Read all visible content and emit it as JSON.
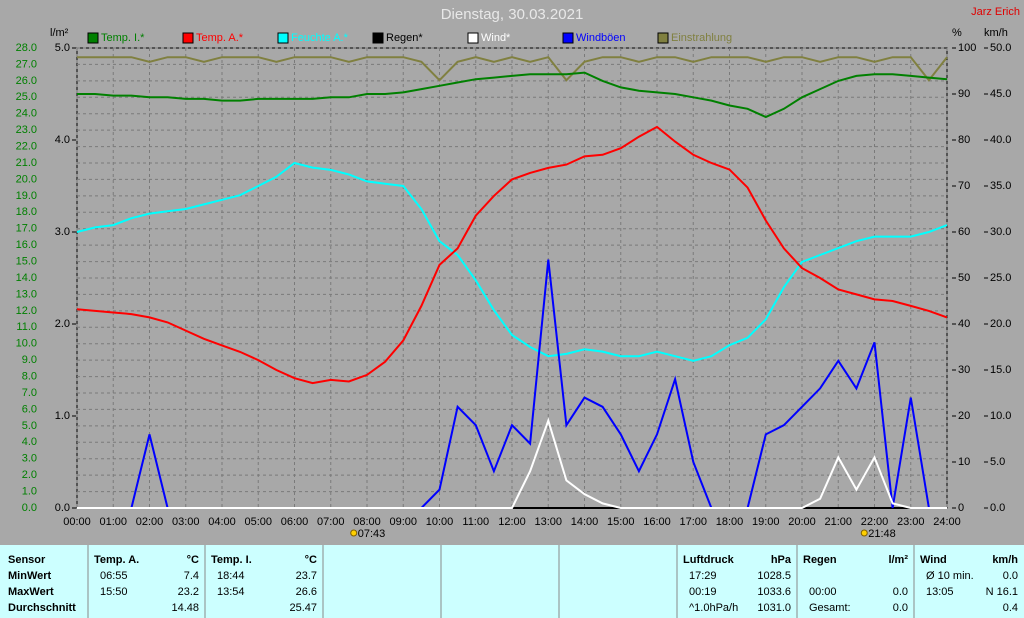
{
  "chart_data": {
    "type": "line",
    "title": "Dienstag, 30.03.2021",
    "author": "Jarz Erich",
    "axis_labels": {
      "y4": "l/m²",
      "y2": "%",
      "y3": "km/h"
    },
    "x": [
      0,
      0.5,
      1,
      1.5,
      2,
      2.5,
      3,
      3.5,
      4,
      4.5,
      5,
      5.5,
      6,
      6.5,
      7,
      7.5,
      8,
      8.5,
      9,
      9.5,
      10,
      10.5,
      11,
      11.5,
      12,
      12.5,
      13,
      13.5,
      14,
      14.5,
      15,
      15.5,
      16,
      16.5,
      17,
      17.5,
      18,
      18.5,
      19,
      19.5,
      20,
      20.5,
      21,
      21.5,
      22,
      22.5,
      23,
      23.5,
      24
    ],
    "xlim": [
      0,
      24
    ],
    "xticks": [
      {
        "value": 0,
        "label": "00:00"
      },
      {
        "value": 1,
        "label": "01:00"
      },
      {
        "value": 2,
        "label": "02:00"
      },
      {
        "value": 3,
        "label": "03:00"
      },
      {
        "value": 4,
        "label": "04:00"
      },
      {
        "value": 5,
        "label": "05:00"
      },
      {
        "value": 6,
        "label": "06:00"
      },
      {
        "value": 7,
        "label": "07:00"
      },
      {
        "value": 8,
        "label": "08:00"
      },
      {
        "value": 9,
        "label": "09:00"
      },
      {
        "value": 10,
        "label": "10:00"
      },
      {
        "value": 11,
        "label": "11:00"
      },
      {
        "value": 12,
        "label": "12:00"
      },
      {
        "value": 13,
        "label": "13:00"
      },
      {
        "value": 14,
        "label": "14:00"
      },
      {
        "value": 15,
        "label": "15:00"
      },
      {
        "value": 16,
        "label": "16:00"
      },
      {
        "value": 17,
        "label": "17:00"
      },
      {
        "value": 18,
        "label": "18:00"
      },
      {
        "value": 19,
        "label": "19:00"
      },
      {
        "value": 20,
        "label": "20:00"
      },
      {
        "value": 21,
        "label": "21:00"
      },
      {
        "value": 22,
        "label": "22:00"
      },
      {
        "value": 23,
        "label": "23:00"
      },
      {
        "value": 24,
        "label": "24:00"
      }
    ],
    "ylim": [
      0,
      28
    ],
    "yticks": [
      {
        "value": 0,
        "label": "0.0"
      },
      {
        "value": 1,
        "label": "1.0"
      },
      {
        "value": 2,
        "label": "2.0"
      },
      {
        "value": 3,
        "label": "3.0"
      },
      {
        "value": 4,
        "label": "4.0"
      },
      {
        "value": 5,
        "label": "5.0"
      },
      {
        "value": 6,
        "label": "6.0"
      },
      {
        "value": 7,
        "label": "7.0"
      },
      {
        "value": 8,
        "label": "8.0"
      },
      {
        "value": 9,
        "label": "9.0"
      },
      {
        "value": 10,
        "label": "10.0"
      },
      {
        "value": 11,
        "label": "11.0"
      },
      {
        "value": 12,
        "label": "12.0"
      },
      {
        "value": 13,
        "label": "13.0"
      },
      {
        "value": 14,
        "label": "14.0"
      },
      {
        "value": 15,
        "label": "15.0"
      },
      {
        "value": 16,
        "label": "16.0"
      },
      {
        "value": 17,
        "label": "17.0"
      },
      {
        "value": 18,
        "label": "18.0"
      },
      {
        "value": 19,
        "label": "19.0"
      },
      {
        "value": 20,
        "label": "20.0"
      },
      {
        "value": 21,
        "label": "21.0"
      },
      {
        "value": 22,
        "label": "22.0"
      },
      {
        "value": 23,
        "label": "23.0"
      },
      {
        "value": 24,
        "label": "24.0"
      },
      {
        "value": 25,
        "label": "25.0"
      },
      {
        "value": 26,
        "label": "26.0"
      },
      {
        "value": 27,
        "label": "27.0"
      },
      {
        "value": 28,
        "label": "28.0"
      }
    ],
    "y2lim": [
      0,
      100
    ],
    "y2ticks": [
      0,
      10,
      20,
      30,
      40,
      50,
      60,
      70,
      80,
      90,
      100
    ],
    "y3lim": [
      0,
      50
    ],
    "y3ticks": [
      {
        "value": 0,
        "label": "0.0"
      },
      {
        "value": 5,
        "label": "5.0"
      },
      {
        "value": 10,
        "label": "10.0"
      },
      {
        "value": 15,
        "label": "15.0"
      },
      {
        "value": 20,
        "label": "20.0"
      },
      {
        "value": 25,
        "label": "25.0"
      },
      {
        "value": 30,
        "label": "30.0"
      },
      {
        "value": 35,
        "label": "35.0"
      },
      {
        "value": 40,
        "label": "40.0"
      },
      {
        "value": 45,
        "label": "45.0"
      },
      {
        "value": 50,
        "label": "50.0"
      }
    ],
    "y4lim": [
      0,
      5
    ],
    "y4ticks": [
      {
        "value": 0,
        "label": "0.0"
      },
      {
        "value": 1,
        "label": "1.0"
      },
      {
        "value": 2,
        "label": "2.0"
      },
      {
        "value": 3,
        "label": "3.0"
      },
      {
        "value": 4,
        "label": "4.0"
      },
      {
        "value": 5,
        "label": "5.0"
      }
    ],
    "grid": true,
    "series": [
      {
        "name": "Temp. I.*",
        "color": "#008000",
        "axis": "y",
        "values": [
          25.2,
          25.2,
          25.1,
          25.1,
          25.0,
          25.0,
          24.9,
          24.9,
          24.8,
          24.8,
          24.9,
          24.9,
          24.9,
          24.9,
          25.0,
          25.0,
          25.2,
          25.2,
          25.3,
          25.5,
          25.7,
          25.9,
          26.1,
          26.2,
          26.3,
          26.4,
          26.4,
          26.4,
          26.5,
          26.0,
          25.6,
          25.4,
          25.3,
          25.2,
          25.0,
          24.8,
          24.5,
          24.3,
          23.8,
          24.3,
          25.0,
          25.5,
          26.0,
          26.3,
          26.4,
          26.4,
          26.3,
          26.2,
          26.1
        ]
      },
      {
        "name": "Temp. A.*",
        "color": "#ff0000",
        "axis": "y",
        "values": [
          12.1,
          12.0,
          11.9,
          11.8,
          11.6,
          11.3,
          10.8,
          10.3,
          9.9,
          9.5,
          9.0,
          8.4,
          7.9,
          7.6,
          7.8,
          7.7,
          8.1,
          8.9,
          10.2,
          12.3,
          14.8,
          15.8,
          17.8,
          19.0,
          20.0,
          20.4,
          20.7,
          20.9,
          21.4,
          21.5,
          21.9,
          22.6,
          23.2,
          22.3,
          21.5,
          21.0,
          20.6,
          19.5,
          17.5,
          15.8,
          14.6,
          14.0,
          13.3,
          13.0,
          12.7,
          12.6,
          12.3,
          12.0,
          11.6
        ]
      },
      {
        "name": "Feuchte A.*",
        "color": "#00ffff",
        "axis": "y2",
        "values": [
          60,
          61,
          61.5,
          63,
          64,
          64.5,
          65,
          66,
          67,
          68,
          70,
          72,
          75,
          74,
          73.5,
          72.5,
          71,
          70.5,
          70,
          65,
          58,
          55,
          49.5,
          43,
          37.6,
          35,
          33,
          33.5,
          34.5,
          34,
          33,
          33,
          34,
          33,
          32,
          33,
          35.4,
          37,
          41,
          48,
          53.5,
          55,
          56.5,
          58,
          59,
          59,
          59,
          60,
          61.5
        ]
      },
      {
        "name": "Regen*",
        "color": "#000000",
        "axis": "y4",
        "values": [
          0,
          0,
          0,
          0,
          0,
          0,
          0,
          0,
          0,
          0,
          0,
          0,
          0,
          0,
          0,
          0,
          0,
          0,
          0,
          0,
          0,
          0,
          0,
          0,
          0,
          0,
          0,
          0,
          0,
          0,
          0,
          0,
          0,
          0,
          0,
          0,
          0,
          0,
          0,
          0,
          0,
          0,
          0,
          0,
          0,
          0,
          0,
          0,
          0
        ]
      },
      {
        "name": "Wind*",
        "color": "#ffffff",
        "axis": "y3",
        "values": [
          0,
          0,
          0,
          0,
          0,
          0,
          0,
          0,
          0,
          0,
          0,
          0,
          0,
          0,
          0,
          0,
          0,
          0,
          0,
          0,
          0,
          0,
          0,
          0,
          0,
          4,
          9.5,
          3,
          1.5,
          0.5,
          0,
          0,
          0,
          0,
          0,
          0,
          0,
          0,
          0,
          0,
          0,
          1,
          5.5,
          2,
          5.5,
          0.5,
          0,
          0,
          0
        ]
      },
      {
        "name": "Windböen",
        "color": "#0000ff",
        "axis": "y3",
        "values": [
          0,
          0,
          0,
          0,
          8,
          0,
          0,
          0,
          0,
          0,
          0,
          0,
          0,
          0,
          0,
          0,
          0,
          0,
          0,
          0,
          2,
          11,
          9,
          4,
          9,
          7,
          27,
          9,
          12,
          11,
          8,
          4,
          8,
          14,
          5,
          0,
          0,
          0,
          8,
          9,
          11,
          13,
          16,
          13,
          18,
          0,
          12,
          0,
          0
        ]
      },
      {
        "name": "Einstrahlung",
        "color": "#808040",
        "axis": "y2",
        "values": [
          98,
          98,
          98,
          98,
          97,
          98,
          98,
          97,
          98,
          98,
          98,
          97,
          98,
          98,
          98,
          97,
          98,
          98,
          98,
          97,
          93,
          97,
          98,
          97,
          98,
          97,
          98,
          93,
          97,
          98,
          98,
          97,
          98,
          98,
          97,
          98,
          98,
          98,
          97,
          98,
          98,
          97,
          98,
          98,
          97,
          98,
          98,
          93,
          98
        ]
      }
    ],
    "annotations": [
      {
        "x": 7.7167,
        "label": "07:43"
      },
      {
        "x": 21.8,
        "label": "21:48"
      }
    ]
  },
  "stats": {
    "row_labels": [
      "Sensor",
      "MinWert",
      "MaxWert",
      "Durchschnitt"
    ],
    "groups": [
      {
        "name": "Temp. A.",
        "unit": "°C",
        "rows": [
          {
            "time": "06:55",
            "value": "7.4"
          },
          {
            "time": "15:50",
            "value": "23.2"
          },
          {
            "value": "14.48"
          }
        ]
      },
      {
        "name": "Temp. I.",
        "unit": "°C",
        "rows": [
          {
            "time": "18:44",
            "value": "23.7"
          },
          {
            "time": "13:54",
            "value": "26.6"
          },
          {
            "value": "25.47"
          }
        ]
      },
      {
        "name": "Luftdruck",
        "unit": "hPa",
        "rows": [
          {
            "time": "17:29",
            "value": "1028.5"
          },
          {
            "time": "00:19",
            "value": "1033.6"
          },
          {
            "time": "^1.0hPa/h",
            "value": "1031.0"
          }
        ]
      },
      {
        "name": "Regen",
        "unit": "l/m²",
        "rows": [
          null,
          {
            "time": "00:00",
            "value": "0.0"
          },
          {
            "time": "Gesamt:",
            "value": "0.0"
          }
        ]
      },
      {
        "name": "Wind",
        "unit": "km/h",
        "rows": [
          {
            "time": "Ø 10 min.",
            "value": "0.0"
          },
          {
            "time": "13:05",
            "value": "N 16.1"
          },
          {
            "value": "0.4"
          }
        ]
      }
    ]
  }
}
